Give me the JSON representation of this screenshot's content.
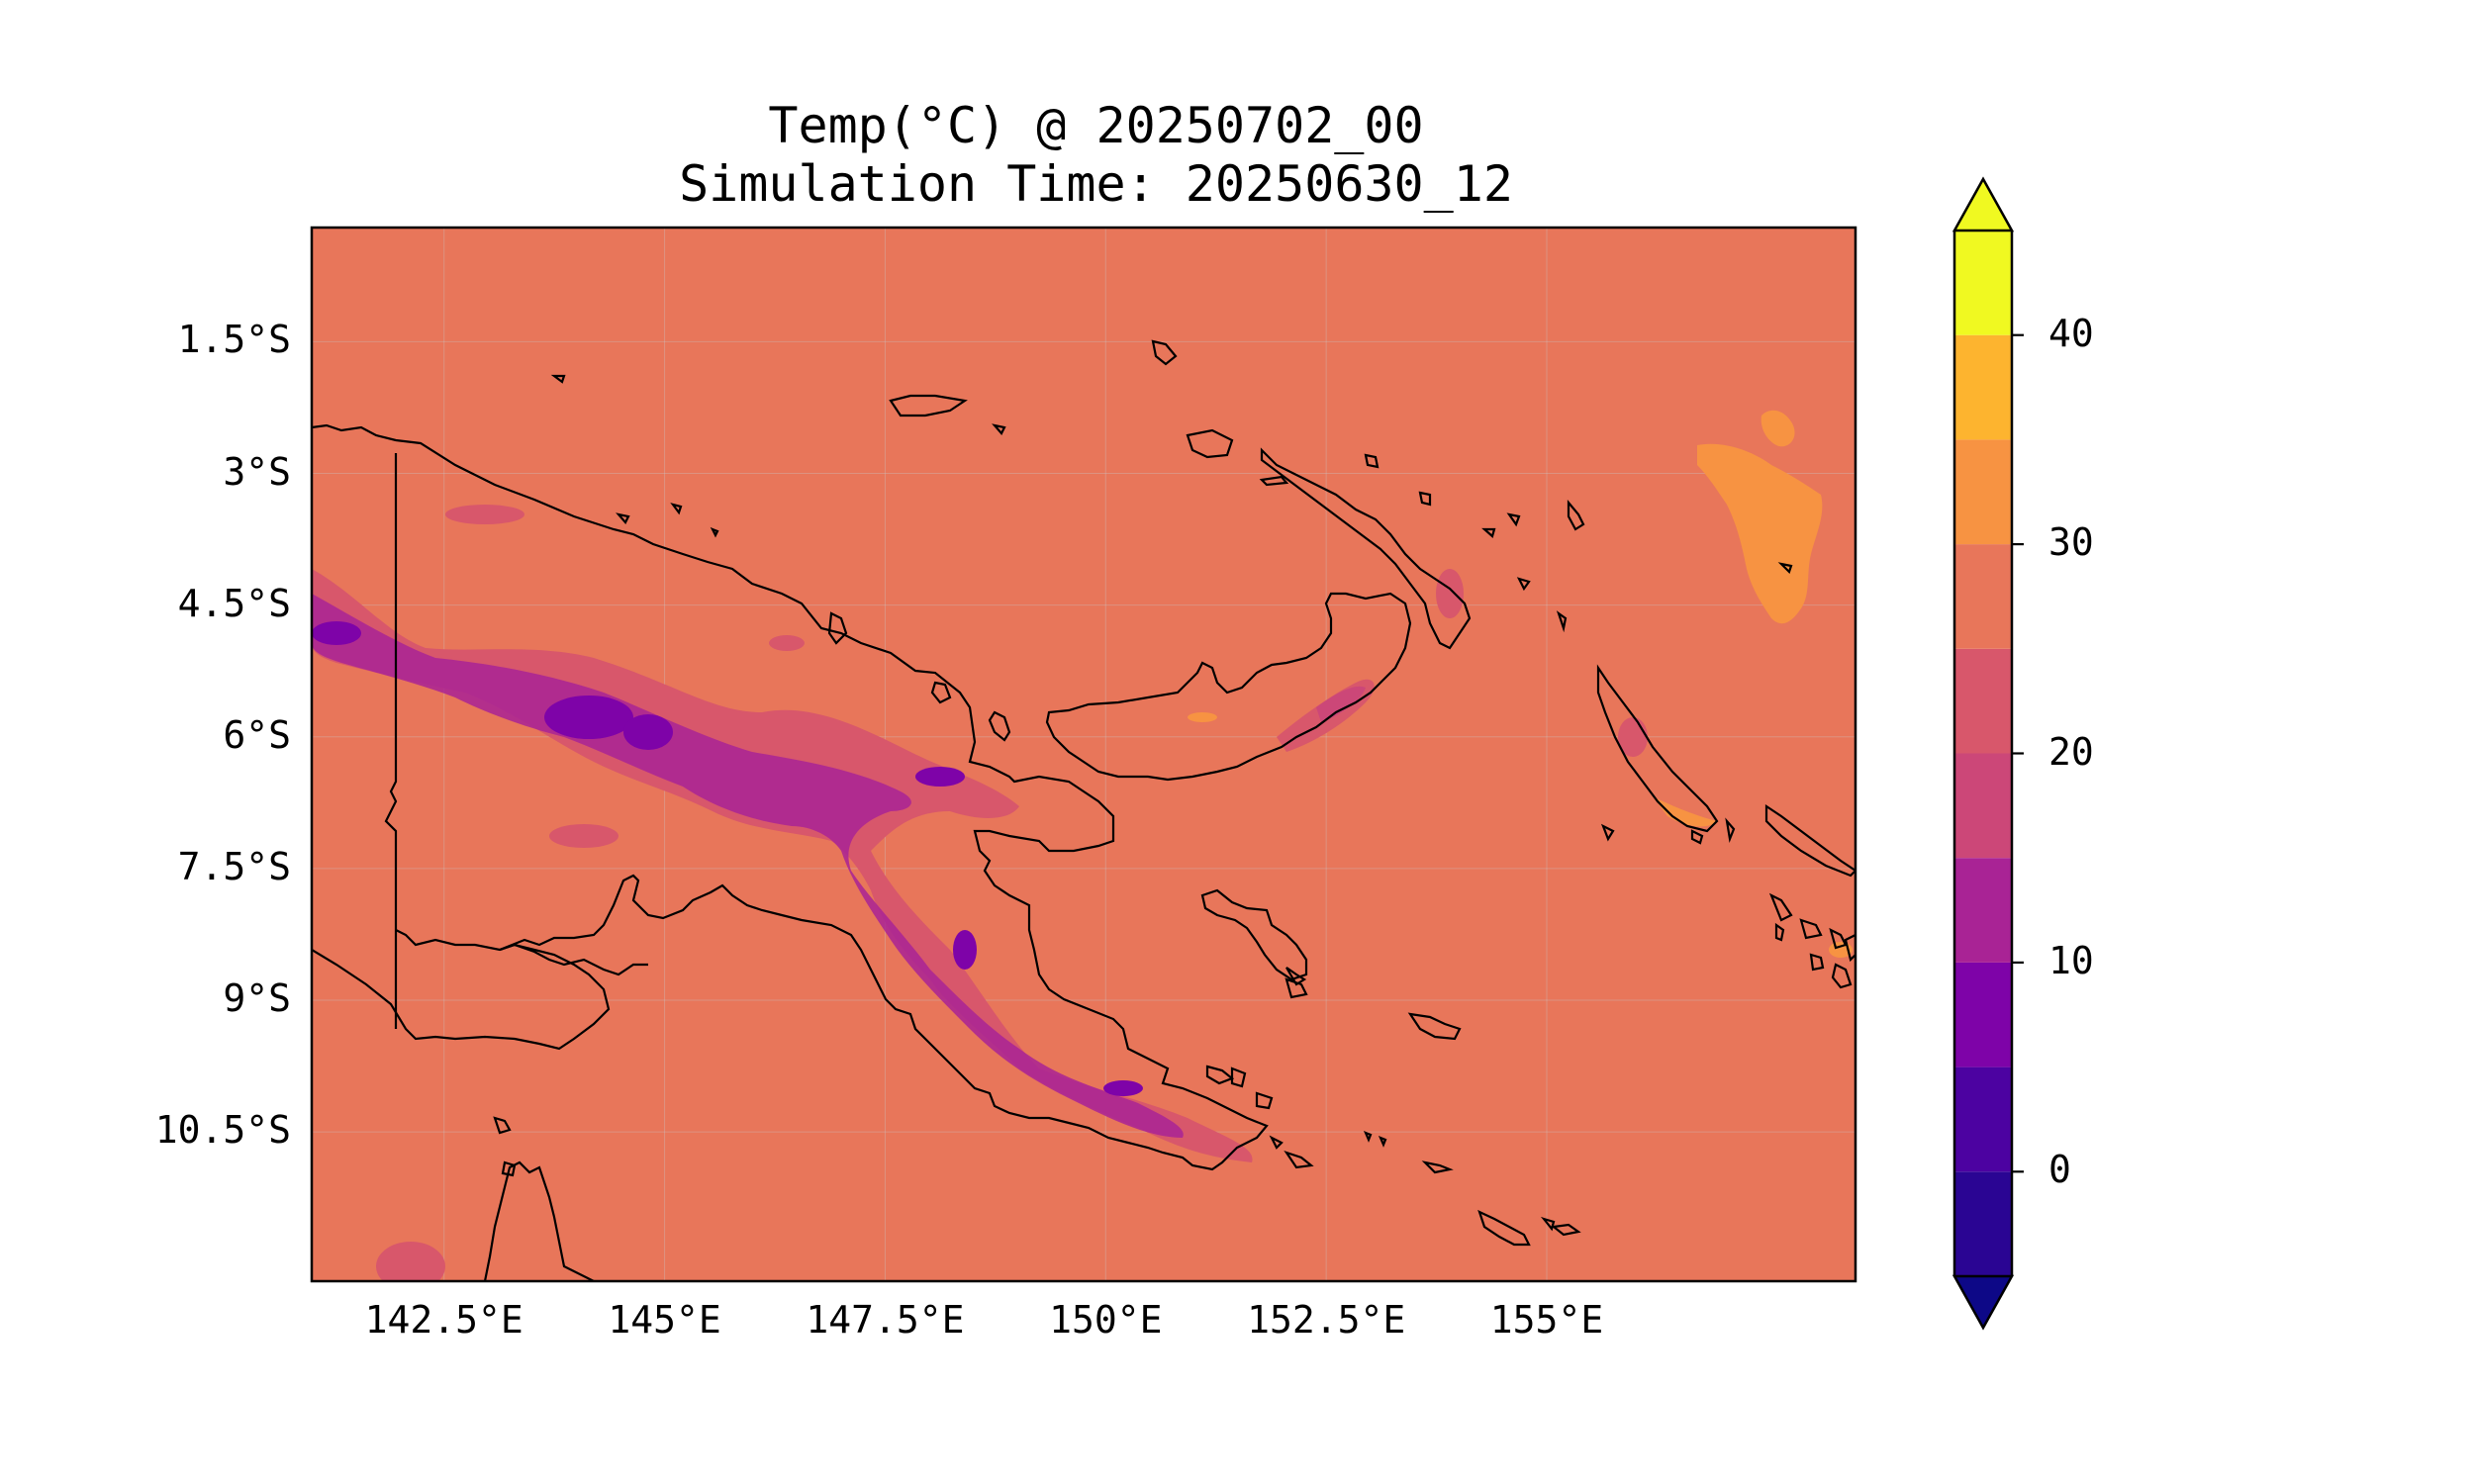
{
  "chart_data": {
    "type": "heatmap",
    "title": "Temp(°C) @ 20250702_00",
    "subtitle": "Simulation Time: 20250630_12",
    "x_ticks": [
      "142.5°E",
      "145°E",
      "147.5°E",
      "150°E",
      "152.5°E",
      "155°E"
    ],
    "x_tick_values": [
      142.5,
      145,
      147.5,
      150,
      152.5,
      155
    ],
    "y_ticks": [
      "1.5°S",
      "3°S",
      "4.5°S",
      "6°S",
      "7.5°S",
      "9°S",
      "10.5°S"
    ],
    "y_tick_values": [
      -1.5,
      -3,
      -4.5,
      -6,
      -7.5,
      -9,
      -10.5
    ],
    "xlim": [
      141,
      158.5
    ],
    "ylim": [
      -12.2,
      -0.2
    ],
    "background_value_range": [
      25,
      30
    ],
    "colorbar": {
      "levels": [
        -5,
        0,
        5,
        10,
        15,
        20,
        25,
        30,
        35,
        40,
        45
      ],
      "tick_labels": [
        "0",
        "10",
        "20",
        "30",
        "40"
      ],
      "tick_values": [
        0,
        10,
        20,
        30,
        40
      ],
      "extend": "both",
      "colormap": "plasma",
      "colors": [
        "#0d0887",
        "#2a0593",
        "#4c02a1",
        "#7e03a8",
        "#a92395",
        "#cc4778",
        "#d8576b",
        "#e8765a",
        "#f79342",
        "#fdb42f",
        "#f0f921"
      ],
      "extend_low_color": "#0d0887",
      "extend_high_color": "#f0f921"
    },
    "grid": true,
    "map": "Papua New Guinea, coastlines"
  }
}
